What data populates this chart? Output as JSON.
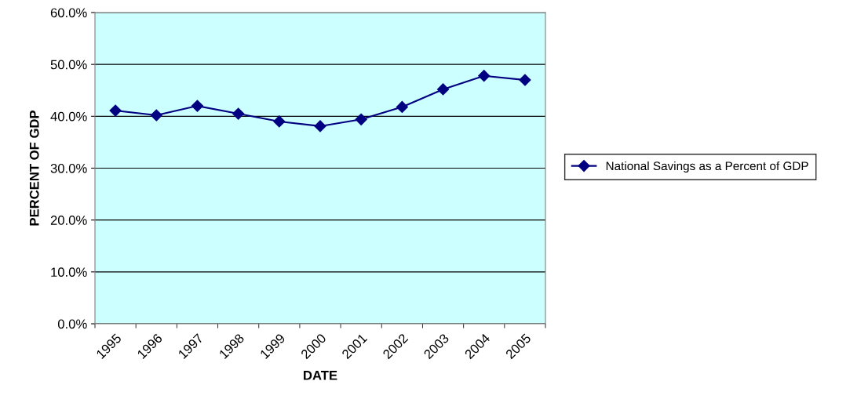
{
  "chart_data": {
    "type": "line",
    "xlabel": "DATE",
    "ylabel": "PERCENT OF GDP",
    "categories": [
      "1995",
      "1996",
      "1997",
      "1998",
      "1999",
      "2000",
      "2001",
      "2002",
      "2003",
      "2004",
      "2005"
    ],
    "series": [
      {
        "name": "National Savings as a Percent of GDP",
        "color": "#000080",
        "values": [
          41.1,
          40.2,
          42.0,
          40.5,
          39.0,
          38.1,
          39.4,
          41.8,
          45.2,
          47.8,
          47.0
        ]
      }
    ],
    "ylim": [
      0,
      60
    ],
    "yticks": [
      {
        "value": 0,
        "label": "0.0%"
      },
      {
        "value": 10,
        "label": "10.0%"
      },
      {
        "value": 20,
        "label": "20.0%"
      },
      {
        "value": 30,
        "label": "30.0%"
      },
      {
        "value": 40,
        "label": "40.0%"
      },
      {
        "value": 50,
        "label": "50.0%"
      },
      {
        "value": 60,
        "label": "60.0%"
      }
    ],
    "grid": "y",
    "legend": "right",
    "marker": "diamond",
    "line_style": "solid"
  }
}
